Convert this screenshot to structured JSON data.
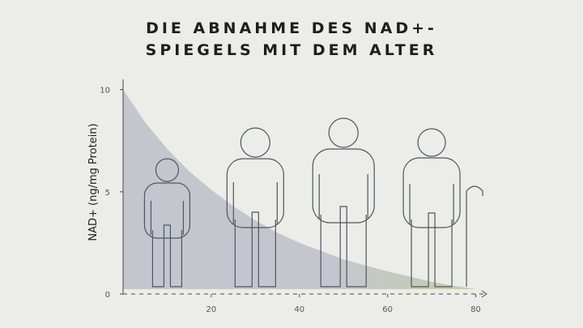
{
  "chart_data": {
    "type": "area",
    "title_lines": [
      "DIE ABNAHME DES NAD+-",
      "SPIEGELS MIT DEM ALTER"
    ],
    "xlabel": "",
    "ylabel": "NAD+ (ng/mg Protein)",
    "xlim": [
      0,
      90
    ],
    "ylim": [
      0,
      10.5
    ],
    "x_ticks": [
      20,
      40,
      60,
      80
    ],
    "y_ticks": [
      0,
      5,
      10
    ],
    "grid": false,
    "legend": "none",
    "series": [
      {
        "x": [
          0,
          5,
          10,
          15,
          20,
          25,
          30,
          35,
          40,
          45,
          50,
          55,
          60,
          65,
          70,
          75,
          80,
          88
        ],
        "values": [
          10.0,
          8.4,
          7.1,
          6.0,
          5.1,
          4.3,
          3.6,
          3.0,
          2.5,
          2.1,
          1.7,
          1.4,
          1.1,
          0.85,
          0.6,
          0.4,
          0.22,
          0.0
        ]
      }
    ],
    "figures": [
      {
        "name": "child-figure",
        "age": 10
      },
      {
        "name": "young-adult-figure",
        "age": 30
      },
      {
        "name": "adult-figure",
        "age": 50
      },
      {
        "name": "elder-figure",
        "age": 70,
        "cane": true
      }
    ],
    "colors": {
      "background": "#ecece8",
      "area_start": "#c3c7cd",
      "area_end": "#c6cea0",
      "figure_stroke": "#4f565e",
      "axis": "#4a4a4a",
      "tick_label": "#555555"
    }
  }
}
